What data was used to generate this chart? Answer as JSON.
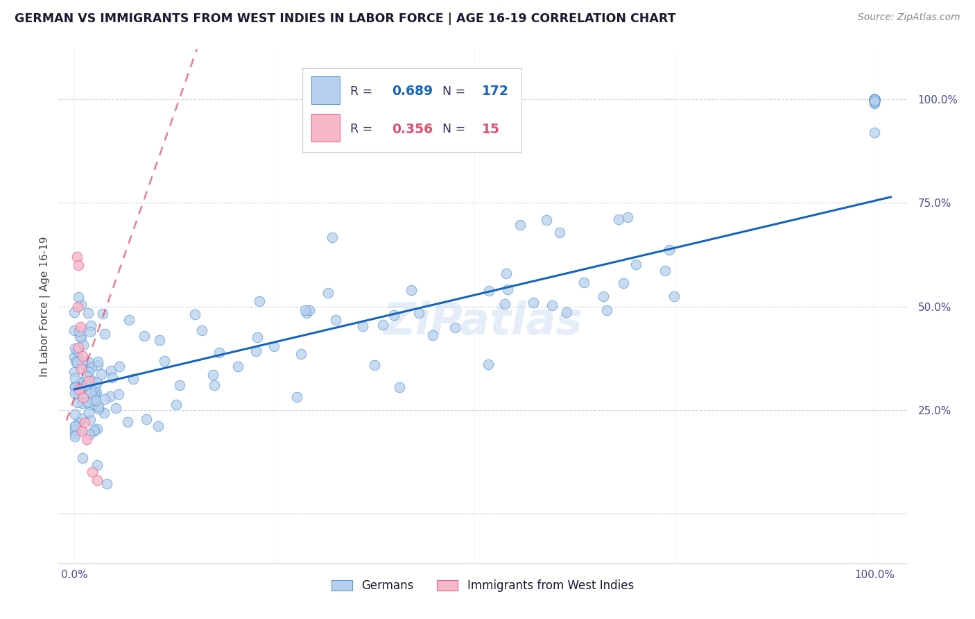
{
  "title": "GERMAN VS IMMIGRANTS FROM WEST INDIES IN LABOR FORCE | AGE 16-19 CORRELATION CHART",
  "source": "Source: ZipAtlas.com",
  "ylabel": "In Labor Force | Age 16-19",
  "blue_R": 0.689,
  "blue_N": 172,
  "pink_R": 0.356,
  "pink_N": 15,
  "blue_color": "#b8d0ed",
  "pink_color": "#f7b8c8",
  "blue_edge_color": "#5b9bd5",
  "pink_edge_color": "#f06090",
  "blue_line_color": "#1565c0",
  "pink_line_color": "#e05070",
  "watermark": "ZiPatlas",
  "legend_label_blue": "Germans",
  "legend_label_pink": "Immigrants from West Indies",
  "xlim": [
    -0.02,
    1.04
  ],
  "ylim": [
    -0.12,
    1.12
  ],
  "grid_color": "#d0d0e8",
  "title_color": "#1a1a2e",
  "source_color": "#888888",
  "ylabel_color": "#444444",
  "tick_color": "#4a4a8a",
  "blue_reg_intercept": 0.3,
  "blue_reg_slope": 0.455,
  "pink_reg_intercept": 0.28,
  "pink_reg_slope": 5.5
}
